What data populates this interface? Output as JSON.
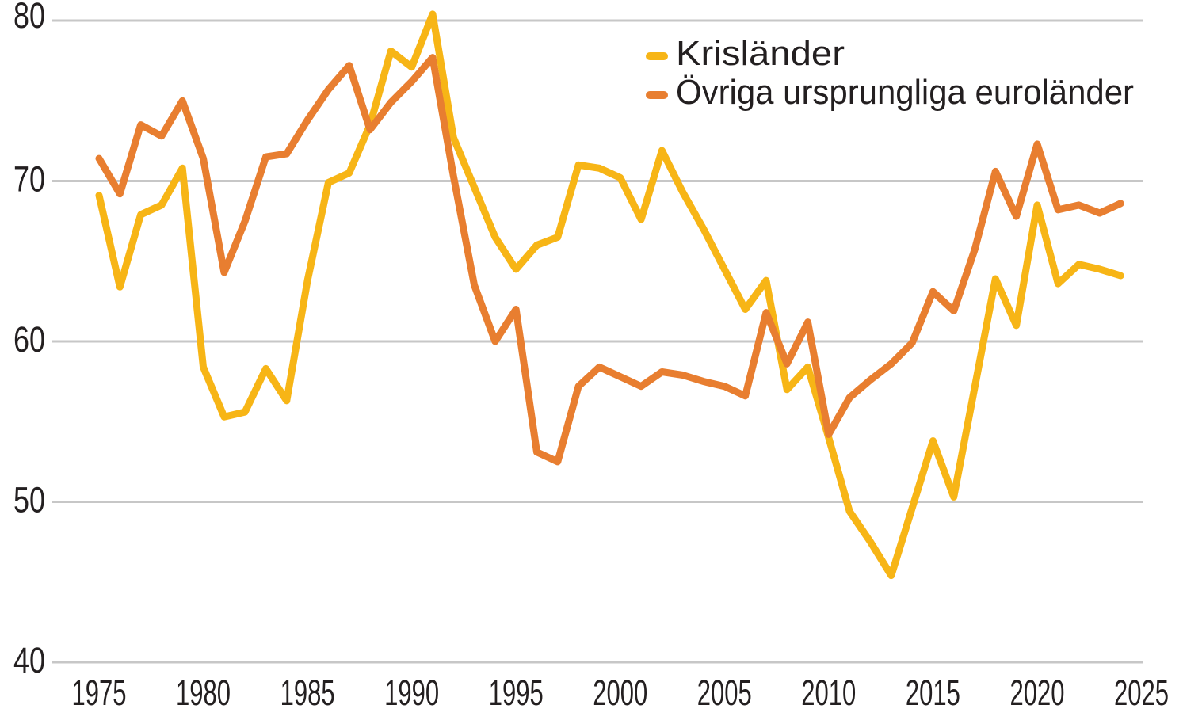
{
  "chart_data": {
    "type": "line",
    "x": [
      1975,
      1976,
      1977,
      1978,
      1979,
      1980,
      1981,
      1982,
      1983,
      1984,
      1985,
      1986,
      1987,
      1988,
      1989,
      1990,
      1991,
      1992,
      1993,
      1994,
      1995,
      1996,
      1997,
      1998,
      1999,
      2000,
      2001,
      2002,
      2003,
      2004,
      2005,
      2006,
      2007,
      2008,
      2009,
      2010,
      2011,
      2012,
      2013,
      2014,
      2015,
      2016,
      2017,
      2018,
      2019,
      2020,
      2021,
      2022,
      2023,
      2024
    ],
    "series": [
      {
        "name": "Krisländer",
        "color": "#F7B516",
        "values": [
          69.1,
          63.4,
          67.9,
          68.5,
          70.8,
          58.4,
          55.3,
          55.6,
          58.3,
          56.3,
          63.8,
          69.9,
          70.5,
          73.5,
          78.1,
          77.1,
          80.4,
          72.7,
          69.6,
          66.5,
          64.5,
          66.0,
          66.5,
          71.0,
          70.8,
          70.2,
          67.6,
          71.9,
          69.3,
          67.0,
          64.5,
          62.0,
          63.8,
          57.0,
          58.4,
          54.0,
          49.4,
          47.5,
          45.4,
          49.6,
          53.8,
          50.3,
          57.1,
          63.9,
          61.0,
          68.5,
          63.6,
          64.8,
          64.5,
          64.1
        ]
      },
      {
        "name": "Övriga ursprungliga euroländer",
        "color": "#E87E30",
        "values": [
          71.4,
          69.2,
          73.5,
          72.8,
          75.0,
          71.4,
          64.3,
          67.5,
          71.5,
          71.7,
          73.8,
          75.7,
          77.2,
          73.2,
          74.9,
          76.2,
          77.7,
          70.3,
          63.5,
          60.0,
          62.0,
          53.1,
          52.5,
          57.2,
          58.4,
          57.8,
          57.2,
          58.1,
          57.9,
          57.5,
          57.2,
          56.6,
          61.8,
          58.6,
          61.2,
          54.2,
          56.5,
          57.6,
          58.6,
          59.9,
          63.1,
          61.9,
          65.7,
          70.6,
          67.8,
          72.3,
          68.2,
          68.5,
          68.0,
          68.6
        ]
      }
    ],
    "title": "",
    "xlabel": "",
    "ylabel": "",
    "ylim": [
      40,
      82
    ],
    "y_ticks": [
      80,
      70,
      60,
      50,
      40
    ],
    "x_ticks": [
      1975,
      1980,
      1985,
      1990,
      1995,
      2000,
      2005,
      2010,
      2015,
      2020,
      2025
    ],
    "grid": "horizontal-only",
    "legend_position": "top-right"
  },
  "colors": {
    "background": "#FFFFFF",
    "gridline": "#C7C7C7",
    "axis_text": "#231F20",
    "series_1": "#F7B516",
    "series_2": "#E87E30"
  }
}
